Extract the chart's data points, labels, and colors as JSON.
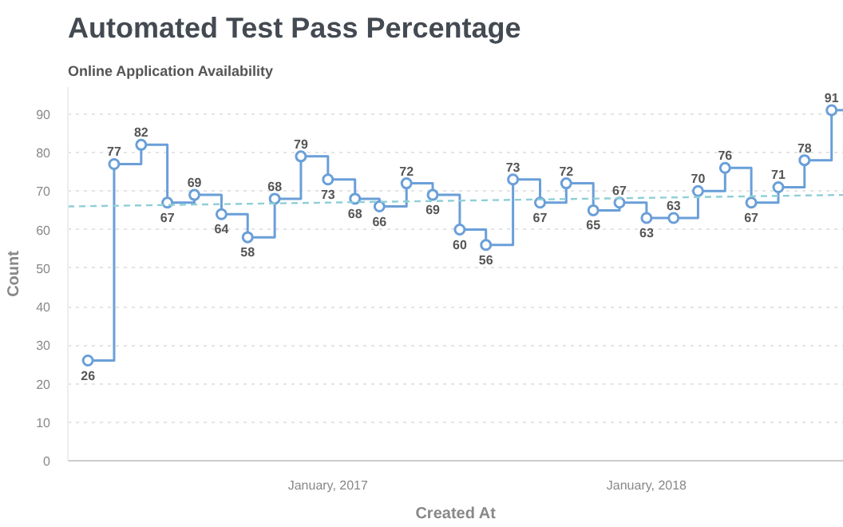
{
  "chart_data": {
    "type": "step",
    "title": "Automated Test Pass Percentage",
    "subtitle": "Online Application Availability",
    "xlabel": "Created At",
    "ylabel": "Count",
    "x": [
      "2016-04",
      "2016-05",
      "2016-06",
      "2016-07",
      "2016-08",
      "2016-09",
      "2016-10",
      "2016-11",
      "2016-12",
      "2017-01",
      "2017-02",
      "2017-03",
      "2017-04",
      "2017-05",
      "2017-06",
      "2017-07",
      "2017-08",
      "2017-09",
      "2017-10",
      "2017-11",
      "2017-12",
      "2018-01",
      "2018-02",
      "2018-03",
      "2018-04",
      "2018-05",
      "2018-06",
      "2018-07",
      "2018-08"
    ],
    "series": [
      {
        "color": "#6a9fd8",
        "values": [
          26,
          77,
          82,
          67,
          69,
          64,
          58,
          68,
          79,
          73,
          68,
          66,
          72,
          69,
          60,
          56,
          73,
          67,
          72,
          65,
          67,
          63,
          63,
          70,
          76,
          67,
          71,
          78,
          91
        ],
        "marker": "circle",
        "line_style": "solid",
        "data_labels": true
      },
      {
        "type": "line",
        "color": "#8ecfd6",
        "x": [
          "2016-03-09",
          "2018-08-15"
        ],
        "values": [
          66,
          69
        ],
        "marker": "none",
        "line_style": "dashed"
      }
    ],
    "xlim": [
      "2016-03-09",
      "2018-08-15"
    ],
    "ylim": [
      0,
      97
    ],
    "xticks": [
      {
        "value": "2017-01",
        "label": "January, 2017"
      },
      {
        "value": "2018-01",
        "label": "January, 2018"
      }
    ],
    "yticks": [
      0,
      10,
      20,
      30,
      40,
      50,
      60,
      70,
      80,
      90
    ],
    "grid": "y"
  }
}
